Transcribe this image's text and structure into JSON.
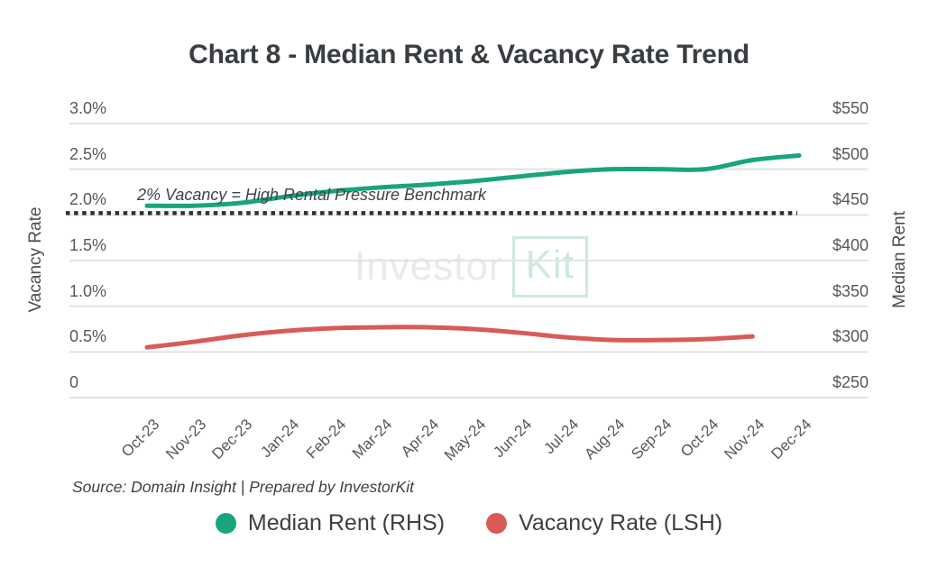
{
  "title": "Chart 8 - Median Rent & Vacancy Rate Trend",
  "watermark": {
    "part1": "Investor",
    "part2": "Kit"
  },
  "source": "Source: Domain Insight | Prepared by InvestorKit",
  "left_axis": {
    "title": "Vacancy Rate",
    "ticks": [
      "3.0%",
      "2.5%",
      "2.0%",
      "1.5%",
      "1.0%",
      "0.5%",
      "0"
    ]
  },
  "right_axis": {
    "title": "Median Rent",
    "ticks": [
      "$550",
      "$500",
      "$450",
      "$400",
      "$350",
      "$300",
      "$250"
    ]
  },
  "legend": [
    {
      "label": "Median Rent (RHS)",
      "color": "#18a57d"
    },
    {
      "label": "Vacancy Rate (LSH)",
      "color": "#d95a57"
    }
  ],
  "colors": {
    "gridline": "#e3e3e3",
    "benchmark_line": "#2f2f2f",
    "median_rent": "#18a57d",
    "vacancy_rate": "#d95a57"
  },
  "chart_data": {
    "type": "line",
    "title": "Chart 8 - Median Rent & Vacancy Rate Trend",
    "categories": [
      "Oct-23",
      "Nov-23",
      "Dec-23",
      "Jan-24",
      "Feb-24",
      "Mar-24",
      "Apr-24",
      "May-24",
      "Jun-24",
      "Jul-24",
      "Aug-24",
      "Sep-24",
      "Oct-24",
      "Nov-24",
      "Dec-24"
    ],
    "series": [
      {
        "name": "Median Rent (RHS)",
        "axis": "right",
        "color": "#18a57d",
        "values": [
          460,
          460,
          463,
          470,
          476,
          480,
          483,
          487,
          492,
          497,
          500,
          500,
          500,
          510,
          515
        ]
      },
      {
        "name": "Vacancy Rate (LSH)",
        "axis": "left",
        "color": "#d95a57",
        "values": [
          0.55,
          0.61,
          0.68,
          0.73,
          0.76,
          0.77,
          0.77,
          0.75,
          0.71,
          0.66,
          0.63,
          0.63,
          0.64,
          0.67,
          null
        ]
      }
    ],
    "left_ylabel": "Vacancy Rate",
    "right_ylabel": "Median Rent",
    "left_ylim": [
      0,
      3
    ],
    "right_ylim": [
      250,
      550
    ],
    "grid": true,
    "legend_position": "bottom",
    "benchmark": {
      "value": 2.0,
      "axis": "left",
      "label": "2% Vacancy = High Rental Pressure Benchmark",
      "style": "dotted"
    }
  }
}
